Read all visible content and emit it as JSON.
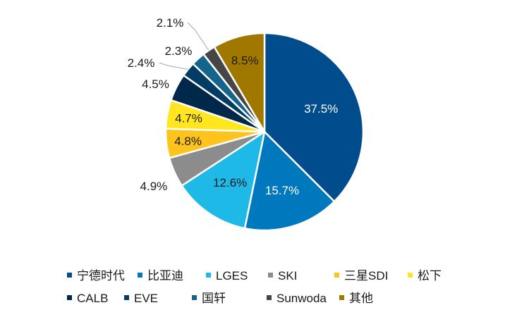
{
  "chart_data": {
    "type": "pie",
    "title": "",
    "legend_position": "bottom",
    "start_angle_deg": 0,
    "direction": "clockwise",
    "series": [
      {
        "name": "宁德时代",
        "value": 37.5,
        "label": "37.5%",
        "color": "#004C8C"
      },
      {
        "name": "比亚迪",
        "value": 15.7,
        "label": "15.7%",
        "color": "#0078BE"
      },
      {
        "name": "LGES",
        "value": 12.6,
        "label": "12.6%",
        "color": "#1EB9E6"
      },
      {
        "name": "SKI",
        "value": 4.9,
        "label": "4.9%",
        "color": "#8C8C8C"
      },
      {
        "name": "三星SDI",
        "value": 4.8,
        "label": "4.8%",
        "color": "#FFC31E"
      },
      {
        "name": "松下",
        "value": 4.7,
        "label": "4.7%",
        "color": "#FFE61E"
      },
      {
        "name": "CALB",
        "value": 4.5,
        "label": "4.5%",
        "color": "#00284B"
      },
      {
        "name": "EVE",
        "value": 2.4,
        "label": "2.4%",
        "color": "#003C64"
      },
      {
        "name": "国轩",
        "value": 2.3,
        "label": "2.3%",
        "color": "#14648C"
      },
      {
        "name": "Sunwoda",
        "value": 2.1,
        "label": "2.1%",
        "color": "#464646"
      },
      {
        "name": "其他",
        "value": 8.5,
        "label": "8.5%",
        "color": "#A07800"
      }
    ]
  }
}
